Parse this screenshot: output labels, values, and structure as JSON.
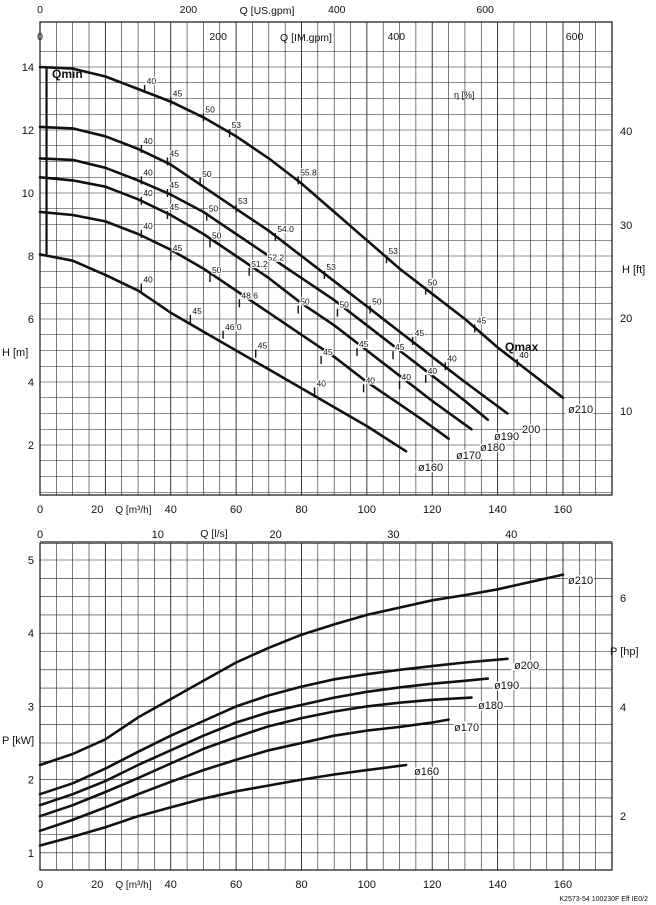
{
  "footer": "K2573-54  100230F  Eff  IE0/2",
  "chart_data": [
    {
      "type": "line",
      "title": "",
      "top_axes": [
        {
          "label": "Q [US.gpm]",
          "ticks": [
            0,
            200,
            400,
            600
          ]
        },
        {
          "label": "Q [IM.gpm]",
          "ticks": [
            0,
            200,
            400,
            600
          ]
        }
      ],
      "xlabel": "Q [m³/h]",
      "ylabel": "H [m]",
      "y2label": "H [ft]",
      "xlim": [
        0,
        175
      ],
      "ylim": [
        0,
        14.5
      ],
      "x_ticks": [
        0,
        20,
        40,
        60,
        80,
        100,
        120,
        140,
        160
      ],
      "y_ticks": [
        2,
        4,
        6,
        8,
        10,
        12,
        14
      ],
      "y2_ticks": [
        10,
        20,
        30,
        40
      ],
      "grid": true,
      "eta_label": "η [%]",
      "qmin_label": "Qmin",
      "qmax_label": "Qmax",
      "series": [
        {
          "name": "ø210",
          "x": [
            0,
            10,
            20,
            30,
            40,
            50,
            60,
            70,
            80,
            90,
            100,
            110,
            120,
            130,
            140,
            150,
            160
          ],
          "y": [
            14.0,
            13.95,
            13.7,
            13.3,
            12.9,
            12.4,
            11.8,
            11.1,
            10.3,
            9.4,
            8.5,
            7.6,
            6.8,
            6.0,
            5.1,
            4.3,
            3.5
          ]
        },
        {
          "name": "200",
          "x": [
            0,
            10,
            20,
            30,
            40,
            50,
            60,
            70,
            80,
            90,
            100,
            110,
            120,
            130,
            143
          ],
          "y": [
            12.1,
            12.05,
            11.8,
            11.4,
            10.9,
            10.2,
            9.5,
            8.8,
            8.0,
            7.2,
            6.4,
            5.6,
            4.8,
            4.0,
            3.0
          ]
        },
        {
          "name": "ø190",
          "x": [
            0,
            10,
            20,
            30,
            40,
            50,
            60,
            70,
            80,
            90,
            100,
            110,
            120,
            130,
            137
          ],
          "y": [
            11.1,
            11.05,
            10.8,
            10.4,
            9.95,
            9.4,
            8.7,
            8.0,
            7.3,
            6.6,
            5.8,
            5.0,
            4.2,
            3.4,
            2.8
          ]
        },
        {
          "name": "ø180",
          "x": [
            0,
            10,
            20,
            30,
            40,
            50,
            60,
            70,
            80,
            90,
            100,
            110,
            120,
            132
          ],
          "y": [
            10.5,
            10.4,
            10.2,
            9.8,
            9.3,
            8.7,
            8.0,
            7.3,
            6.5,
            5.8,
            5.0,
            4.2,
            3.4,
            2.5
          ]
        },
        {
          "name": "ø170",
          "x": [
            0,
            10,
            20,
            30,
            40,
            50,
            60,
            70,
            80,
            90,
            100,
            110,
            117,
            125
          ],
          "y": [
            9.4,
            9.3,
            9.1,
            8.7,
            8.2,
            7.6,
            6.9,
            6.2,
            5.5,
            4.8,
            4.0,
            3.3,
            2.8,
            2.2
          ]
        },
        {
          "name": "ø160",
          "x": [
            0,
            10,
            20,
            30,
            40,
            50,
            60,
            70,
            80,
            90,
            100,
            112
          ],
          "y": [
            8.05,
            7.85,
            7.4,
            6.9,
            6.2,
            5.6,
            5.0,
            4.4,
            3.8,
            3.2,
            2.6,
            1.8
          ]
        }
      ],
      "efficiency_marks": [
        {
          "label": "40",
          "x": 32,
          "y": 13.3
        },
        {
          "label": "45",
          "x": 40,
          "y": 12.9
        },
        {
          "label": "50",
          "x": 50,
          "y": 12.4
        },
        {
          "label": "53",
          "x": 58,
          "y": 11.9
        },
        {
          "label": "55.8",
          "x": 79,
          "y": 10.4
        },
        {
          "label": "53",
          "x": 106,
          "y": 7.9
        },
        {
          "label": "50",
          "x": 118,
          "y": 6.9
        },
        {
          "label": "45",
          "x": 133,
          "y": 5.7
        },
        {
          "label": "40",
          "x": 146,
          "y": 4.6
        },
        {
          "label": "40",
          "x": 31,
          "y": 11.4
        },
        {
          "label": "45",
          "x": 39,
          "y": 11.0
        },
        {
          "label": "50",
          "x": 49,
          "y": 10.35
        },
        {
          "label": "53",
          "x": 60,
          "y": 9.5
        },
        {
          "label": "54.0",
          "x": 72,
          "y": 8.6
        },
        {
          "label": "53",
          "x": 87,
          "y": 7.4
        },
        {
          "label": "50",
          "x": 101,
          "y": 6.3
        },
        {
          "label": "45",
          "x": 114,
          "y": 5.3
        },
        {
          "label": "40",
          "x": 124,
          "y": 4.5
        },
        {
          "label": "40",
          "x": 31,
          "y": 10.4
        },
        {
          "label": "45",
          "x": 39,
          "y": 10.0
        },
        {
          "label": "50",
          "x": 51,
          "y": 9.25
        },
        {
          "label": "52.2",
          "x": 69,
          "y": 7.7
        },
        {
          "label": "50",
          "x": 91,
          "y": 6.2
        },
        {
          "label": "45",
          "x": 108,
          "y": 4.85
        },
        {
          "label": "40",
          "x": 118,
          "y": 4.1
        },
        {
          "label": "40",
          "x": 31,
          "y": 9.75
        },
        {
          "label": "45",
          "x": 39,
          "y": 9.3
        },
        {
          "label": "50",
          "x": 52,
          "y": 8.4
        },
        {
          "label": "51.2",
          "x": 64,
          "y": 7.5
        },
        {
          "label": "50",
          "x": 79,
          "y": 6.3
        },
        {
          "label": "45",
          "x": 97,
          "y": 4.95
        },
        {
          "label": "40",
          "x": 110,
          "y": 3.9
        },
        {
          "label": "40",
          "x": 31,
          "y": 8.7
        },
        {
          "label": "45",
          "x": 40,
          "y": 8.0
        },
        {
          "label": "50",
          "x": 52,
          "y": 7.3
        },
        {
          "label": "48.6",
          "x": 61,
          "y": 6.5
        },
        {
          "label": "45",
          "x": 86,
          "y": 4.7
        },
        {
          "label": "40",
          "x": 99,
          "y": 3.8
        },
        {
          "label": "40",
          "x": 31,
          "y": 7.0
        },
        {
          "label": "45",
          "x": 46,
          "y": 6.0
        },
        {
          "label": "46.0",
          "x": 56,
          "y": 5.5
        },
        {
          "label": "45",
          "x": 66,
          "y": 4.9
        },
        {
          "label": "40",
          "x": 84,
          "y": 3.7
        }
      ]
    },
    {
      "type": "line",
      "title": "",
      "top_axis": {
        "label": "Q [l/s]",
        "ticks": [
          0,
          10,
          20,
          30,
          40
        ]
      },
      "xlabel": "Q [m³/h]",
      "ylabel": "P [kW]",
      "y2label": "P [hp]",
      "xlim": [
        0,
        175
      ],
      "ylim": [
        0.8,
        5.4
      ],
      "x_ticks": [
        0,
        20,
        40,
        60,
        80,
        100,
        120,
        140,
        160
      ],
      "y_ticks": [
        1,
        2,
        3,
        4,
        5
      ],
      "y2_ticks": [
        2,
        4,
        6
      ],
      "grid": true,
      "series": [
        {
          "name": "ø210",
          "x": [
            0,
            10,
            20,
            30,
            40,
            50,
            60,
            70,
            80,
            90,
            100,
            110,
            120,
            130,
            140,
            150,
            160
          ],
          "y": [
            2.2,
            2.35,
            2.55,
            2.85,
            3.1,
            3.35,
            3.6,
            3.8,
            3.98,
            4.12,
            4.25,
            4.35,
            4.45,
            4.52,
            4.6,
            4.7,
            4.8
          ]
        },
        {
          "name": "ø200",
          "x": [
            0,
            10,
            20,
            30,
            40,
            50,
            60,
            70,
            80,
            90,
            100,
            110,
            120,
            130,
            143
          ],
          "y": [
            1.8,
            1.95,
            2.15,
            2.38,
            2.6,
            2.8,
            3.0,
            3.15,
            3.27,
            3.37,
            3.44,
            3.5,
            3.55,
            3.6,
            3.65
          ]
        },
        {
          "name": "ø190",
          "x": [
            0,
            10,
            20,
            30,
            40,
            50,
            60,
            70,
            80,
            90,
            100,
            110,
            120,
            130,
            137
          ],
          "y": [
            1.65,
            1.8,
            1.98,
            2.2,
            2.4,
            2.6,
            2.78,
            2.92,
            3.02,
            3.12,
            3.2,
            3.26,
            3.31,
            3.35,
            3.38
          ]
        },
        {
          "name": "ø180",
          "x": [
            0,
            10,
            20,
            30,
            40,
            50,
            60,
            70,
            80,
            90,
            100,
            110,
            120,
            132
          ],
          "y": [
            1.5,
            1.65,
            1.83,
            2.02,
            2.22,
            2.42,
            2.58,
            2.73,
            2.84,
            2.93,
            3.0,
            3.05,
            3.09,
            3.12
          ]
        },
        {
          "name": "ø170",
          "x": [
            0,
            10,
            20,
            30,
            40,
            50,
            60,
            70,
            80,
            90,
            100,
            110,
            120,
            125
          ],
          "y": [
            1.3,
            1.45,
            1.62,
            1.8,
            1.97,
            2.13,
            2.27,
            2.4,
            2.5,
            2.6,
            2.67,
            2.72,
            2.78,
            2.82
          ]
        },
        {
          "name": "ø160",
          "x": [
            0,
            10,
            20,
            30,
            40,
            50,
            60,
            70,
            80,
            90,
            100,
            112
          ],
          "y": [
            1.1,
            1.22,
            1.35,
            1.5,
            1.62,
            1.74,
            1.84,
            1.92,
            2.0,
            2.07,
            2.13,
            2.2
          ]
        }
      ]
    }
  ]
}
